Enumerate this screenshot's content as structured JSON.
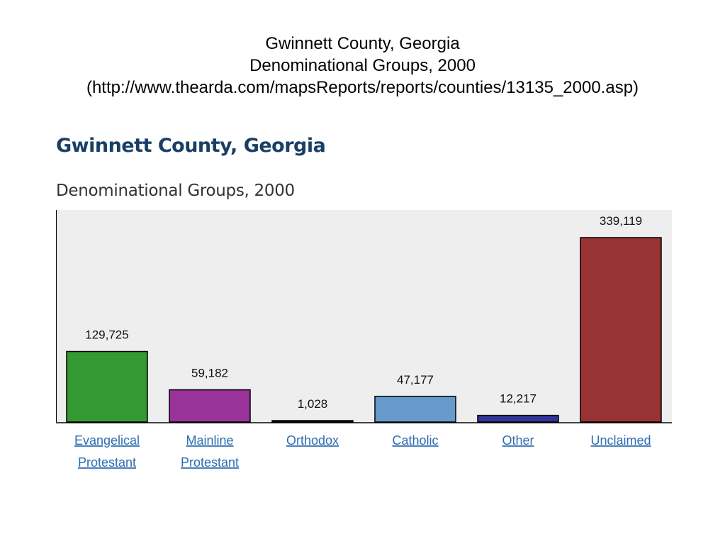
{
  "slide_title": {
    "line1": "Gwinnett County, Georgia",
    "line2": "Denominational Groups, 2000",
    "line3": "(http://www.thearda.com/mapsReports/reports/counties/13135_2000.asp)"
  },
  "chart_data": {
    "type": "bar",
    "title": "Gwinnett County, Georgia",
    "subtitle": "Denominational Groups, 2000",
    "categories": [
      [
        "Evangelical",
        "Protestant"
      ],
      [
        "Mainline",
        "Protestant"
      ],
      [
        "Orthodox"
      ],
      [
        "Catholic"
      ],
      [
        "Other"
      ],
      [
        "Unclaimed"
      ]
    ],
    "values": [
      129725,
      59182,
      1028,
      47177,
      12217,
      339119
    ],
    "value_labels": [
      "129,725",
      "59,182",
      "1,028",
      "47,177",
      "12,217",
      "339,119"
    ],
    "colors": [
      "#339933",
      "#993399",
      "#222222",
      "#6699cc",
      "#333399",
      "#993333"
    ],
    "ylim": [
      0,
      390000
    ],
    "xlabel": "",
    "ylabel": "",
    "grid": false,
    "legend": "none",
    "background": "#eeeeee"
  }
}
